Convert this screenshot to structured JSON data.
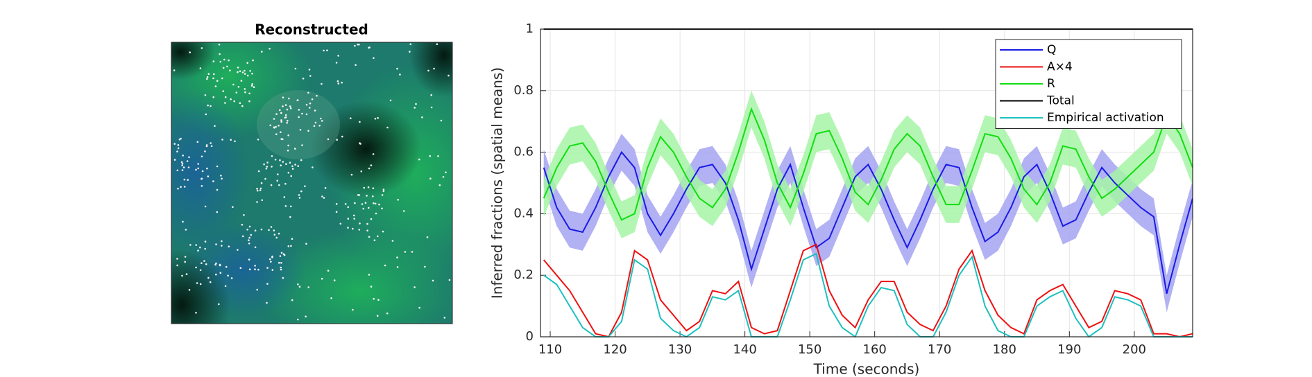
{
  "image_title": "Reconstructed",
  "chart_data": {
    "type": "line",
    "xlabel": "Time (seconds)",
    "ylabel": "Inferred fractions (spatial means)",
    "x": [
      109,
      111,
      113,
      115,
      117,
      119,
      121,
      123,
      125,
      127,
      129,
      131,
      133,
      135,
      137,
      139,
      141,
      143,
      145,
      147,
      149,
      151,
      153,
      155,
      157,
      159,
      161,
      163,
      165,
      167,
      169,
      171,
      173,
      175,
      177,
      179,
      181,
      183,
      185,
      187,
      189,
      191,
      193,
      195,
      197,
      199,
      201,
      203,
      205,
      207,
      209
    ],
    "xlim": [
      108.5,
      209
    ],
    "xticks": [
      110,
      120,
      130,
      140,
      150,
      160,
      170,
      180,
      190,
      200
    ],
    "ylim": [
      0,
      1
    ],
    "yticks": [
      0,
      0.2,
      0.4,
      0.6,
      0.8,
      1
    ],
    "grid": true,
    "legend": "northeast",
    "series": [
      {
        "name": "Q",
        "color": "#1a1ae6",
        "band_color": "#a3a3f2",
        "spread": 0.06,
        "values": [
          0.55,
          0.42,
          0.35,
          0.34,
          0.42,
          0.52,
          0.6,
          0.55,
          0.4,
          0.33,
          0.4,
          0.48,
          0.55,
          0.56,
          0.5,
          0.38,
          0.22,
          0.35,
          0.48,
          0.56,
          0.42,
          0.29,
          0.32,
          0.42,
          0.52,
          0.56,
          0.48,
          0.38,
          0.29,
          0.38,
          0.48,
          0.56,
          0.55,
          0.42,
          0.31,
          0.34,
          0.42,
          0.52,
          0.56,
          0.47,
          0.36,
          0.38,
          0.47,
          0.55,
          0.5,
          0.46,
          0.42,
          0.39,
          0.14,
          0.3,
          0.45
        ]
      },
      {
        "name": "A×4",
        "color": "#ee1111",
        "values": [
          0.25,
          0.2,
          0.15,
          0.08,
          0.01,
          0,
          0.08,
          0.28,
          0.25,
          0.12,
          0.07,
          0.02,
          0.05,
          0.15,
          0.14,
          0.18,
          0.03,
          0.01,
          0.02,
          0.15,
          0.28,
          0.3,
          0.15,
          0.07,
          0.03,
          0.12,
          0.18,
          0.18,
          0.08,
          0.04,
          0.02,
          0.1,
          0.22,
          0.28,
          0.15,
          0.07,
          0.03,
          0.01,
          0.12,
          0.15,
          0.17,
          0.1,
          0.03,
          0.05,
          0.15,
          0.14,
          0.12,
          0.01,
          0.01,
          0,
          0.01
        ]
      },
      {
        "name": "R",
        "color": "#11dd11",
        "band_color": "#a6f5a6",
        "spread": 0.06,
        "values": [
          0.45,
          0.55,
          0.62,
          0.63,
          0.57,
          0.47,
          0.38,
          0.4,
          0.55,
          0.65,
          0.6,
          0.52,
          0.45,
          0.42,
          0.48,
          0.6,
          0.74,
          0.64,
          0.5,
          0.42,
          0.53,
          0.66,
          0.67,
          0.58,
          0.47,
          0.43,
          0.51,
          0.61,
          0.66,
          0.62,
          0.52,
          0.43,
          0.43,
          0.54,
          0.66,
          0.65,
          0.58,
          0.48,
          0.43,
          0.5,
          0.62,
          0.61,
          0.52,
          0.45,
          0.48,
          0.52,
          0.56,
          0.6,
          0.72,
          0.66,
          0.55
        ]
      },
      {
        "name": "Total",
        "color": "#000000",
        "values": [
          1,
          1,
          1,
          1,
          1,
          1,
          1,
          1,
          1,
          1,
          1,
          1,
          1,
          1,
          1,
          1,
          1,
          1,
          1,
          1,
          1,
          1,
          1,
          1,
          1,
          1,
          1,
          1,
          1,
          1,
          1,
          1,
          1,
          1,
          1,
          1,
          1,
          1,
          1,
          1,
          1,
          1,
          1,
          1,
          1,
          1,
          1,
          1,
          1,
          1,
          1
        ]
      },
      {
        "name": "Empirical activation",
        "color": "#1fbfbf",
        "values": [
          0.2,
          0.17,
          0.1,
          0.03,
          0,
          0,
          0.05,
          0.25,
          0.22,
          0.06,
          0.02,
          0,
          0.03,
          0.13,
          0.12,
          0.15,
          0,
          0,
          0,
          0.12,
          0.25,
          0.27,
          0.1,
          0.03,
          0,
          0.1,
          0.16,
          0.15,
          0.04,
          0,
          0,
          0.08,
          0.2,
          0.26,
          0.1,
          0.02,
          0,
          0,
          0.1,
          0.13,
          0.15,
          0.06,
          0,
          0.03,
          0.13,
          0.12,
          0.1,
          0,
          0,
          0,
          0
        ]
      }
    ]
  }
}
